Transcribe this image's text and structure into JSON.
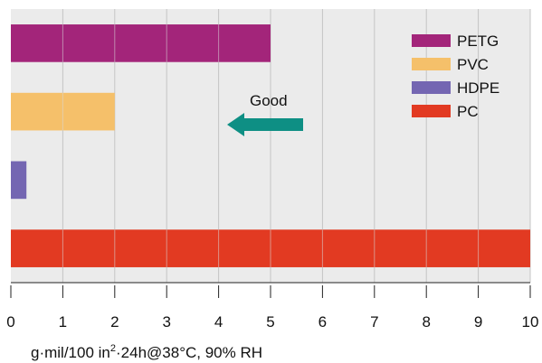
{
  "chart_data": {
    "type": "bar",
    "orientation": "horizontal",
    "categories": [
      "PETG",
      "PVC",
      "HDPE",
      "PC"
    ],
    "values": [
      5,
      2,
      0.3,
      10
    ],
    "colors": [
      "#a3257a",
      "#f5c06a",
      "#7466b2",
      "#e23a22"
    ],
    "xlim": [
      0,
      10
    ],
    "xticks": [
      0,
      1,
      2,
      3,
      4,
      5,
      6,
      7,
      8,
      9,
      10
    ],
    "xlabel_parts": [
      "g·mil/100 in",
      "2",
      "·24h@38°C, 90% RH"
    ],
    "grid": true,
    "legend": {
      "position": "top-right",
      "entries": [
        "PETG",
        "PVC",
        "HDPE",
        "PC"
      ]
    },
    "annotation": {
      "text": "Good",
      "arrow_direction": "left",
      "arrow_color": "#0e8f84"
    },
    "plot_background": "#ebebeb"
  }
}
